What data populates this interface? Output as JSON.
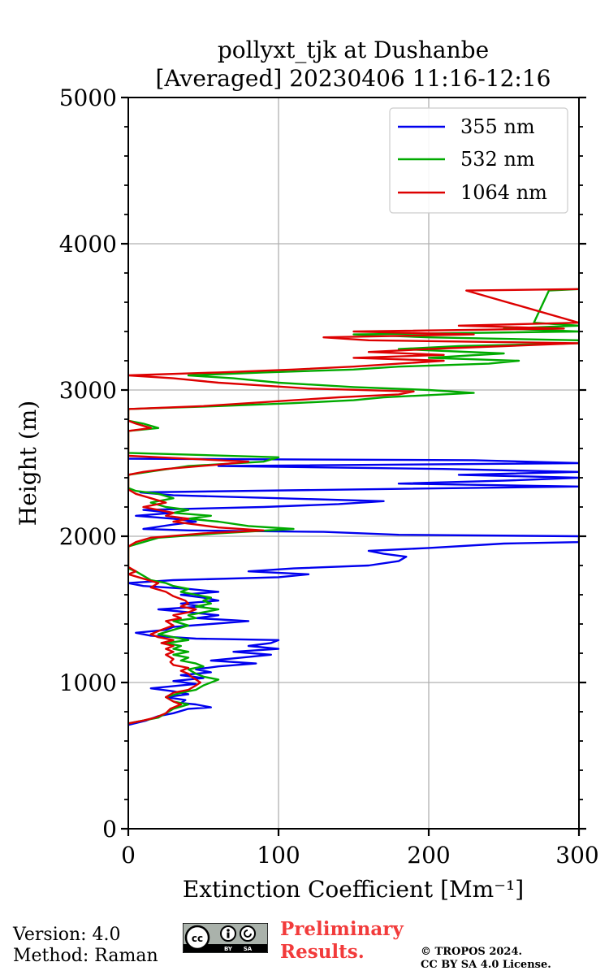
{
  "chart_data": {
    "type": "line",
    "title": [
      "pollyxt_tjk at Dushanbe",
      "[Averaged] 20230406 11:16-12:16"
    ],
    "xlabel": "Extinction Coefficient [Mm⁻¹]",
    "ylabel": "Height (m)",
    "xlim": [
      0,
      300
    ],
    "ylim": [
      0,
      5000
    ],
    "xticks": [
      0,
      100,
      200,
      300
    ],
    "yticks": [
      0,
      1000,
      2000,
      3000,
      4000,
      5000
    ],
    "y_minor_step": 200,
    "grid": true,
    "legend": {
      "placement": "top-right",
      "entries": [
        "355 nm",
        "532 nm",
        "1064 nm"
      ]
    },
    "series": [
      {
        "name": "355 nm",
        "color": "#0000ee",
        "points": [
          [
            0,
            710
          ],
          [
            12,
            740
          ],
          [
            20,
            770
          ],
          [
            30,
            790
          ],
          [
            40,
            820
          ],
          [
            55,
            830
          ],
          [
            45,
            850
          ],
          [
            35,
            860
          ],
          [
            38,
            880
          ],
          [
            25,
            900
          ],
          [
            40,
            920
          ],
          [
            30,
            940
          ],
          [
            15,
            960
          ],
          [
            35,
            980
          ],
          [
            45,
            990
          ],
          [
            30,
            1010
          ],
          [
            50,
            1030
          ],
          [
            35,
            1050
          ],
          [
            55,
            1070
          ],
          [
            45,
            1090
          ],
          [
            60,
            1110
          ],
          [
            85,
            1130
          ],
          [
            55,
            1150
          ],
          [
            75,
            1170
          ],
          [
            95,
            1190
          ],
          [
            70,
            1210
          ],
          [
            100,
            1230
          ],
          [
            80,
            1250
          ],
          [
            95,
            1270
          ],
          [
            100,
            1290
          ],
          [
            45,
            1300
          ],
          [
            15,
            1320
          ],
          [
            5,
            1340
          ],
          [
            25,
            1360
          ],
          [
            30,
            1380
          ],
          [
            55,
            1400
          ],
          [
            80,
            1420
          ],
          [
            45,
            1440
          ],
          [
            60,
            1460
          ],
          [
            40,
            1480
          ],
          [
            20,
            1500
          ],
          [
            50,
            1520
          ],
          [
            35,
            1540
          ],
          [
            60,
            1560
          ],
          [
            50,
            1580
          ],
          [
            35,
            1600
          ],
          [
            60,
            1620
          ],
          [
            40,
            1640
          ],
          [
            10,
            1660
          ],
          [
            0,
            1680
          ],
          [
            30,
            1700
          ],
          [
            100,
            1720
          ],
          [
            120,
            1740
          ],
          [
            80,
            1760
          ],
          [
            110,
            1780
          ],
          [
            160,
            1800
          ],
          [
            180,
            1830
          ],
          [
            185,
            1860
          ],
          [
            170,
            1880
          ],
          [
            160,
            1900
          ],
          [
            200,
            1920
          ],
          [
            250,
            1950
          ],
          [
            300,
            1960
          ],
          [
            300,
            2000
          ],
          [
            180,
            2010
          ],
          [
            130,
            2030
          ],
          [
            40,
            2040
          ],
          [
            10,
            2050
          ],
          [
            30,
            2080
          ],
          [
            45,
            2100
          ],
          [
            30,
            2120
          ],
          [
            5,
            2140
          ],
          [
            30,
            2160
          ],
          [
            10,
            2180
          ],
          [
            90,
            2200
          ],
          [
            140,
            2220
          ],
          [
            170,
            2240
          ],
          [
            100,
            2260
          ],
          [
            30,
            2280
          ],
          [
            8,
            2300
          ],
          [
            150,
            2320
          ],
          [
            300,
            2340
          ],
          [
            180,
            2360
          ],
          [
            250,
            2380
          ],
          [
            300,
            2400
          ],
          [
            220,
            2420
          ],
          [
            300,
            2440
          ],
          [
            210,
            2460
          ],
          [
            60,
            2480
          ],
          [
            300,
            2500
          ],
          [
            230,
            2520
          ],
          [
            0,
            2530
          ]
        ]
      },
      {
        "name": "532 nm",
        "color": "#00aa00",
        "points": [
          [
            0,
            720
          ],
          [
            10,
            740
          ],
          [
            20,
            760
          ],
          [
            25,
            790
          ],
          [
            30,
            820
          ],
          [
            40,
            850
          ],
          [
            30,
            870
          ],
          [
            25,
            900
          ],
          [
            35,
            930
          ],
          [
            45,
            950
          ],
          [
            50,
            980
          ],
          [
            55,
            1000
          ],
          [
            60,
            1020
          ],
          [
            50,
            1040
          ],
          [
            45,
            1060
          ],
          [
            40,
            1090
          ],
          [
            50,
            1110
          ],
          [
            45,
            1130
          ],
          [
            35,
            1150
          ],
          [
            40,
            1170
          ],
          [
            30,
            1190
          ],
          [
            40,
            1210
          ],
          [
            30,
            1230
          ],
          [
            35,
            1250
          ],
          [
            25,
            1270
          ],
          [
            40,
            1290
          ],
          [
            30,
            1310
          ],
          [
            20,
            1330
          ],
          [
            30,
            1360
          ],
          [
            40,
            1390
          ],
          [
            30,
            1420
          ],
          [
            45,
            1440
          ],
          [
            40,
            1460
          ],
          [
            50,
            1480
          ],
          [
            60,
            1500
          ],
          [
            45,
            1520
          ],
          [
            55,
            1540
          ],
          [
            50,
            1560
          ],
          [
            55,
            1580
          ],
          [
            45,
            1600
          ],
          [
            35,
            1620
          ],
          [
            40,
            1640
          ],
          [
            30,
            1660
          ],
          [
            25,
            1680
          ],
          [
            15,
            1700
          ],
          [
            10,
            1730
          ],
          [
            5,
            1760
          ],
          [
            0,
            1780
          ],
          [
            0,
            1930
          ],
          [
            10,
            1960
          ],
          [
            20,
            1990
          ],
          [
            60,
            2020
          ],
          [
            110,
            2050
          ],
          [
            80,
            2070
          ],
          [
            60,
            2100
          ],
          [
            40,
            2120
          ],
          [
            55,
            2140
          ],
          [
            30,
            2160
          ],
          [
            40,
            2180
          ],
          [
            25,
            2200
          ],
          [
            15,
            2230
          ],
          [
            30,
            2260
          ],
          [
            20,
            2290
          ],
          [
            5,
            2310
          ],
          [
            0,
            2330
          ],
          [
            0,
            2420
          ],
          [
            20,
            2450
          ],
          [
            40,
            2480
          ],
          [
            90,
            2510
          ],
          [
            100,
            2540
          ],
          [
            0,
            2570
          ],
          [
            0,
            2720
          ],
          [
            20,
            2740
          ],
          [
            10,
            2770
          ],
          [
            0,
            2790
          ],
          [
            0,
            2870
          ],
          [
            60,
            2890
          ],
          [
            110,
            2910
          ],
          [
            150,
            2930
          ],
          [
            170,
            2950
          ],
          [
            230,
            2980
          ],
          [
            200,
            3000
          ],
          [
            150,
            3020
          ],
          [
            100,
            3050
          ],
          [
            70,
            3080
          ],
          [
            40,
            3100
          ],
          [
            90,
            3120
          ],
          [
            150,
            3140
          ],
          [
            180,
            3160
          ],
          [
            240,
            3180
          ],
          [
            260,
            3200
          ],
          [
            200,
            3220
          ],
          [
            250,
            3250
          ],
          [
            180,
            3280
          ],
          [
            220,
            3300
          ],
          [
            300,
            3320
          ],
          [
            300,
            3340
          ],
          [
            200,
            3360
          ],
          [
            150,
            3380
          ],
          [
            300,
            3400
          ],
          [
            250,
            3420
          ],
          [
            300,
            3440
          ],
          [
            270,
            3460
          ],
          [
            280,
            3680
          ],
          [
            300,
            3690
          ]
        ]
      },
      {
        "name": "1064 nm",
        "color": "#dd0000",
        "points": [
          [
            0,
            720
          ],
          [
            10,
            740
          ],
          [
            18,
            760
          ],
          [
            25,
            790
          ],
          [
            28,
            820
          ],
          [
            35,
            850
          ],
          [
            30,
            870
          ],
          [
            25,
            900
          ],
          [
            30,
            930
          ],
          [
            40,
            950
          ],
          [
            45,
            980
          ],
          [
            48,
            1000
          ],
          [
            45,
            1020
          ],
          [
            42,
            1040
          ],
          [
            40,
            1060
          ],
          [
            35,
            1080
          ],
          [
            40,
            1100
          ],
          [
            30,
            1120
          ],
          [
            28,
            1140
          ],
          [
            30,
            1160
          ],
          [
            25,
            1190
          ],
          [
            30,
            1210
          ],
          [
            25,
            1230
          ],
          [
            30,
            1250
          ],
          [
            22,
            1270
          ],
          [
            30,
            1290
          ],
          [
            20,
            1310
          ],
          [
            15,
            1330
          ],
          [
            22,
            1360
          ],
          [
            30,
            1390
          ],
          [
            25,
            1420
          ],
          [
            35,
            1440
          ],
          [
            30,
            1460
          ],
          [
            40,
            1480
          ],
          [
            45,
            1500
          ],
          [
            35,
            1520
          ],
          [
            40,
            1540
          ],
          [
            38,
            1560
          ],
          [
            30,
            1590
          ],
          [
            25,
            1620
          ],
          [
            15,
            1650
          ],
          [
            20,
            1680
          ],
          [
            10,
            1710
          ],
          [
            0,
            1740
          ],
          [
            5,
            1760
          ],
          [
            0,
            1790
          ],
          [
            0,
            1930
          ],
          [
            5,
            1960
          ],
          [
            15,
            1990
          ],
          [
            50,
            2020
          ],
          [
            90,
            2040
          ],
          [
            60,
            2060
          ],
          [
            45,
            2080
          ],
          [
            30,
            2100
          ],
          [
            40,
            2120
          ],
          [
            25,
            2140
          ],
          [
            30,
            2160
          ],
          [
            20,
            2180
          ],
          [
            10,
            2200
          ],
          [
            25,
            2230
          ],
          [
            15,
            2260
          ],
          [
            5,
            2290
          ],
          [
            0,
            2320
          ],
          [
            0,
            2420
          ],
          [
            10,
            2440
          ],
          [
            25,
            2460
          ],
          [
            60,
            2490
          ],
          [
            80,
            2510
          ],
          [
            0,
            2550
          ],
          [
            0,
            2720
          ],
          [
            15,
            2740
          ],
          [
            5,
            2770
          ],
          [
            0,
            2790
          ],
          [
            0,
            2870
          ],
          [
            50,
            2890
          ],
          [
            80,
            2910
          ],
          [
            110,
            2930
          ],
          [
            140,
            2950
          ],
          [
            180,
            2970
          ],
          [
            190,
            2990
          ],
          [
            120,
            3010
          ],
          [
            90,
            3030
          ],
          [
            60,
            3050
          ],
          [
            30,
            3080
          ],
          [
            0,
            3100
          ],
          [
            60,
            3120
          ],
          [
            110,
            3140
          ],
          [
            150,
            3160
          ],
          [
            180,
            3180
          ],
          [
            210,
            3200
          ],
          [
            150,
            3220
          ],
          [
            210,
            3240
          ],
          [
            160,
            3260
          ],
          [
            200,
            3280
          ],
          [
            250,
            3300
          ],
          [
            300,
            3320
          ],
          [
            160,
            3340
          ],
          [
            130,
            3360
          ],
          [
            230,
            3380
          ],
          [
            150,
            3400
          ],
          [
            290,
            3420
          ],
          [
            220,
            3440
          ],
          [
            300,
            3460
          ],
          [
            225,
            3680
          ],
          [
            300,
            3690
          ]
        ]
      }
    ]
  },
  "footer": {
    "version": "Version: 4.0",
    "method": "Method: Raman",
    "preliminary_1": "Preliminary",
    "preliminary_2": "Results.",
    "copyright_1": "© TROPOS 2024.",
    "copyright_2": "CC BY SA 4.0 License.",
    "cc_logo_text": "cc BY SA"
  }
}
